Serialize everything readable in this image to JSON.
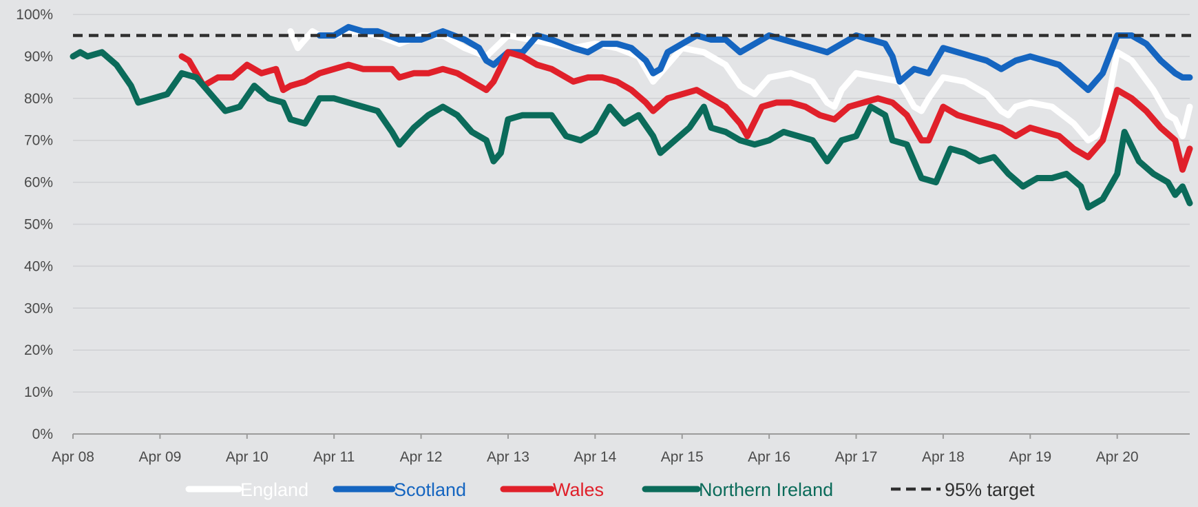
{
  "chart_data": {
    "type": "line",
    "title": "",
    "xlabel": "",
    "ylabel": "",
    "ylim": [
      0,
      100
    ],
    "xlim": [
      "2008-04",
      "2021-02"
    ],
    "grid": "horizontal",
    "legend_position": "bottom",
    "y_ticks": [
      "0%",
      "10%",
      "20%",
      "30%",
      "40%",
      "50%",
      "60%",
      "70%",
      "80%",
      "90%",
      "100%"
    ],
    "x_ticks": [
      "Apr 08",
      "Apr 09",
      "Apr 10",
      "Apr 11",
      "Apr 12",
      "Apr 13",
      "Apr 14",
      "Apr 15",
      "Apr 16",
      "Apr 17",
      "Apr 18",
      "Apr 19",
      "Apr 20"
    ],
    "target": {
      "name": "95% target",
      "value": 95,
      "color": "#2f2f2f"
    },
    "series": [
      {
        "name": "England",
        "color": "#ffffff",
        "points": [
          [
            "2010-10",
            96
          ],
          [
            "2010-11",
            92
          ],
          [
            "2010-12",
            94
          ],
          [
            "2011-01",
            96
          ],
          [
            "2011-02",
            95
          ],
          [
            "2011-04",
            95
          ],
          [
            "2011-07",
            96
          ],
          [
            "2011-10",
            95
          ],
          [
            "2012-01",
            93
          ],
          [
            "2012-04",
            95
          ],
          [
            "2012-07",
            95
          ],
          [
            "2012-10",
            92
          ],
          [
            "2013-01",
            90
          ],
          [
            "2013-04",
            95
          ],
          [
            "2013-07",
            94
          ],
          [
            "2013-10",
            93
          ],
          [
            "2014-01",
            92
          ],
          [
            "2014-04",
            93
          ],
          [
            "2014-07",
            92
          ],
          [
            "2014-10",
            90
          ],
          [
            "2014-12",
            84
          ],
          [
            "2015-01",
            86
          ],
          [
            "2015-04",
            92
          ],
          [
            "2015-07",
            91
          ],
          [
            "2015-10",
            88
          ],
          [
            "2015-12",
            83
          ],
          [
            "2016-01",
            82
          ],
          [
            "2016-02",
            81
          ],
          [
            "2016-04",
            85
          ],
          [
            "2016-07",
            86
          ],
          [
            "2016-10",
            84
          ],
          [
            "2016-12",
            79
          ],
          [
            "2017-01",
            78
          ],
          [
            "2017-02",
            82
          ],
          [
            "2017-04",
            86
          ],
          [
            "2017-07",
            85
          ],
          [
            "2017-10",
            84
          ],
          [
            "2017-12",
            78
          ],
          [
            "2018-01",
            77
          ],
          [
            "2018-02",
            80
          ],
          [
            "2018-04",
            85
          ],
          [
            "2018-07",
            84
          ],
          [
            "2018-10",
            81
          ],
          [
            "2018-12",
            77
          ],
          [
            "2019-01",
            76
          ],
          [
            "2019-02",
            78
          ],
          [
            "2019-04",
            79
          ],
          [
            "2019-07",
            78
          ],
          [
            "2019-10",
            74
          ],
          [
            "2019-12",
            70
          ],
          [
            "2020-01",
            71
          ],
          [
            "2020-02",
            73
          ],
          [
            "2020-04",
            91
          ],
          [
            "2020-06",
            89
          ],
          [
            "2020-09",
            82
          ],
          [
            "2020-11",
            76
          ],
          [
            "2020-12",
            75
          ],
          [
            "2021-01",
            71
          ],
          [
            "2021-02",
            78
          ]
        ]
      },
      {
        "name": "Scotland",
        "color": "#1565c0",
        "points": [
          [
            "2011-02",
            95
          ],
          [
            "2011-04",
            95
          ],
          [
            "2011-06",
            97
          ],
          [
            "2011-08",
            96
          ],
          [
            "2011-10",
            96
          ],
          [
            "2012-01",
            94
          ],
          [
            "2012-04",
            94
          ],
          [
            "2012-07",
            96
          ],
          [
            "2012-10",
            94
          ],
          [
            "2012-12",
            92
          ],
          [
            "2013-01",
            89
          ],
          [
            "2013-02",
            88
          ],
          [
            "2013-04",
            91
          ],
          [
            "2013-06",
            91
          ],
          [
            "2013-08",
            95
          ],
          [
            "2013-10",
            94
          ],
          [
            "2014-01",
            92
          ],
          [
            "2014-03",
            91
          ],
          [
            "2014-05",
            93
          ],
          [
            "2014-07",
            93
          ],
          [
            "2014-09",
            92
          ],
          [
            "2014-11",
            89
          ],
          [
            "2014-12",
            86
          ],
          [
            "2015-01",
            87
          ],
          [
            "2015-02",
            91
          ],
          [
            "2015-04",
            93
          ],
          [
            "2015-06",
            95
          ],
          [
            "2015-08",
            94
          ],
          [
            "2015-10",
            94
          ],
          [
            "2015-12",
            91
          ],
          [
            "2016-02",
            93
          ],
          [
            "2016-04",
            95
          ],
          [
            "2016-06",
            94
          ],
          [
            "2016-08",
            93
          ],
          [
            "2016-10",
            92
          ],
          [
            "2016-12",
            91
          ],
          [
            "2017-02",
            93
          ],
          [
            "2017-04",
            95
          ],
          [
            "2017-06",
            94
          ],
          [
            "2017-08",
            93
          ],
          [
            "2017-09",
            90
          ],
          [
            "2017-10",
            84
          ],
          [
            "2017-12",
            87
          ],
          [
            "2018-02",
            86
          ],
          [
            "2018-04",
            92
          ],
          [
            "2018-06",
            91
          ],
          [
            "2018-08",
            90
          ],
          [
            "2018-10",
            89
          ],
          [
            "2018-12",
            87
          ],
          [
            "2019-02",
            89
          ],
          [
            "2019-04",
            90
          ],
          [
            "2019-06",
            89
          ],
          [
            "2019-08",
            88
          ],
          [
            "2019-10",
            85
          ],
          [
            "2019-12",
            82
          ],
          [
            "2020-02",
            86
          ],
          [
            "2020-04",
            95
          ],
          [
            "2020-06",
            95
          ],
          [
            "2020-08",
            93
          ],
          [
            "2020-10",
            89
          ],
          [
            "2020-12",
            86
          ],
          [
            "2021-01",
            85
          ],
          [
            "2021-02",
            85
          ]
        ]
      },
      {
        "name": "Wales",
        "color": "#e0202a",
        "points": [
          [
            "2009-07",
            90
          ],
          [
            "2009-08",
            89
          ],
          [
            "2009-10",
            83
          ],
          [
            "2009-12",
            85
          ],
          [
            "2010-02",
            85
          ],
          [
            "2010-04",
            88
          ],
          [
            "2010-06",
            86
          ],
          [
            "2010-08",
            87
          ],
          [
            "2010-09",
            82
          ],
          [
            "2010-10",
            83
          ],
          [
            "2010-12",
            84
          ],
          [
            "2011-02",
            86
          ],
          [
            "2011-04",
            87
          ],
          [
            "2011-06",
            88
          ],
          [
            "2011-08",
            87
          ],
          [
            "2011-10",
            87
          ],
          [
            "2011-12",
            87
          ],
          [
            "2012-01",
            85
          ],
          [
            "2012-03",
            86
          ],
          [
            "2012-05",
            86
          ],
          [
            "2012-07",
            87
          ],
          [
            "2012-09",
            86
          ],
          [
            "2012-11",
            84
          ],
          [
            "2013-01",
            82
          ],
          [
            "2013-02",
            84
          ],
          [
            "2013-04",
            91
          ],
          [
            "2013-06",
            90
          ],
          [
            "2013-08",
            88
          ],
          [
            "2013-10",
            87
          ],
          [
            "2014-01",
            84
          ],
          [
            "2014-03",
            85
          ],
          [
            "2014-05",
            85
          ],
          [
            "2014-07",
            84
          ],
          [
            "2014-09",
            82
          ],
          [
            "2014-11",
            79
          ],
          [
            "2014-12",
            77
          ],
          [
            "2015-02",
            80
          ],
          [
            "2015-04",
            81
          ],
          [
            "2015-06",
            82
          ],
          [
            "2015-08",
            80
          ],
          [
            "2015-10",
            78
          ],
          [
            "2015-12",
            74
          ],
          [
            "2016-01",
            71
          ],
          [
            "2016-03",
            78
          ],
          [
            "2016-05",
            79
          ],
          [
            "2016-07",
            79
          ],
          [
            "2016-09",
            78
          ],
          [
            "2016-11",
            76
          ],
          [
            "2017-01",
            75
          ],
          [
            "2017-03",
            78
          ],
          [
            "2017-05",
            79
          ],
          [
            "2017-07",
            80
          ],
          [
            "2017-09",
            79
          ],
          [
            "2017-11",
            76
          ],
          [
            "2018-01",
            70
          ],
          [
            "2018-02",
            70
          ],
          [
            "2018-04",
            78
          ],
          [
            "2018-06",
            76
          ],
          [
            "2018-08",
            75
          ],
          [
            "2018-10",
            74
          ],
          [
            "2018-12",
            73
          ],
          [
            "2019-02",
            71
          ],
          [
            "2019-04",
            73
          ],
          [
            "2019-06",
            72
          ],
          [
            "2019-08",
            71
          ],
          [
            "2019-10",
            68
          ],
          [
            "2019-12",
            66
          ],
          [
            "2020-02",
            70
          ],
          [
            "2020-04",
            82
          ],
          [
            "2020-06",
            80
          ],
          [
            "2020-08",
            77
          ],
          [
            "2020-10",
            73
          ],
          [
            "2020-12",
            70
          ],
          [
            "2021-01",
            63
          ],
          [
            "2021-02",
            68
          ]
        ]
      },
      {
        "name": "Northern Ireland",
        "color": "#0b6b5a",
        "points": [
          [
            "2008-04",
            90
          ],
          [
            "2008-05",
            91
          ],
          [
            "2008-06",
            90
          ],
          [
            "2008-08",
            91
          ],
          [
            "2008-10",
            88
          ],
          [
            "2008-12",
            83
          ],
          [
            "2009-01",
            79
          ],
          [
            "2009-03",
            80
          ],
          [
            "2009-05",
            81
          ],
          [
            "2009-07",
            86
          ],
          [
            "2009-09",
            85
          ],
          [
            "2009-11",
            81
          ],
          [
            "2010-01",
            77
          ],
          [
            "2010-03",
            78
          ],
          [
            "2010-05",
            83
          ],
          [
            "2010-07",
            80
          ],
          [
            "2010-09",
            79
          ],
          [
            "2010-10",
            75
          ],
          [
            "2010-12",
            74
          ],
          [
            "2011-02",
            80
          ],
          [
            "2011-04",
            80
          ],
          [
            "2011-06",
            79
          ],
          [
            "2011-08",
            78
          ],
          [
            "2011-10",
            77
          ],
          [
            "2011-12",
            72
          ],
          [
            "2012-01",
            69
          ],
          [
            "2012-03",
            73
          ],
          [
            "2012-05",
            76
          ],
          [
            "2012-07",
            78
          ],
          [
            "2012-09",
            76
          ],
          [
            "2012-11",
            72
          ],
          [
            "2013-01",
            70
          ],
          [
            "2013-02",
            65
          ],
          [
            "2013-03",
            67
          ],
          [
            "2013-04",
            75
          ],
          [
            "2013-06",
            76
          ],
          [
            "2013-08",
            76
          ],
          [
            "2013-10",
            76
          ],
          [
            "2013-12",
            71
          ],
          [
            "2014-02",
            70
          ],
          [
            "2014-04",
            72
          ],
          [
            "2014-06",
            78
          ],
          [
            "2014-08",
            74
          ],
          [
            "2014-10",
            76
          ],
          [
            "2014-12",
            71
          ],
          [
            "2015-01",
            67
          ],
          [
            "2015-03",
            70
          ],
          [
            "2015-05",
            73
          ],
          [
            "2015-07",
            78
          ],
          [
            "2015-08",
            73
          ],
          [
            "2015-10",
            72
          ],
          [
            "2015-12",
            70
          ],
          [
            "2016-02",
            69
          ],
          [
            "2016-04",
            70
          ],
          [
            "2016-06",
            72
          ],
          [
            "2016-08",
            71
          ],
          [
            "2016-10",
            70
          ],
          [
            "2016-12",
            65
          ],
          [
            "2017-02",
            70
          ],
          [
            "2017-04",
            71
          ],
          [
            "2017-06",
            78
          ],
          [
            "2017-08",
            76
          ],
          [
            "2017-09",
            70
          ],
          [
            "2017-11",
            69
          ],
          [
            "2018-01",
            61
          ],
          [
            "2018-03",
            60
          ],
          [
            "2018-05",
            68
          ],
          [
            "2018-07",
            67
          ],
          [
            "2018-09",
            65
          ],
          [
            "2018-11",
            66
          ],
          [
            "2019-01",
            62
          ],
          [
            "2019-03",
            59
          ],
          [
            "2019-05",
            61
          ],
          [
            "2019-07",
            61
          ],
          [
            "2019-09",
            62
          ],
          [
            "2019-11",
            59
          ],
          [
            "2019-12",
            54
          ],
          [
            "2020-02",
            56
          ],
          [
            "2020-04",
            62
          ],
          [
            "2020-05",
            72
          ],
          [
            "2020-07",
            65
          ],
          [
            "2020-09",
            62
          ],
          [
            "2020-11",
            60
          ],
          [
            "2020-12",
            57
          ],
          [
            "2021-01",
            59
          ],
          [
            "2021-02",
            55
          ]
        ]
      }
    ]
  }
}
